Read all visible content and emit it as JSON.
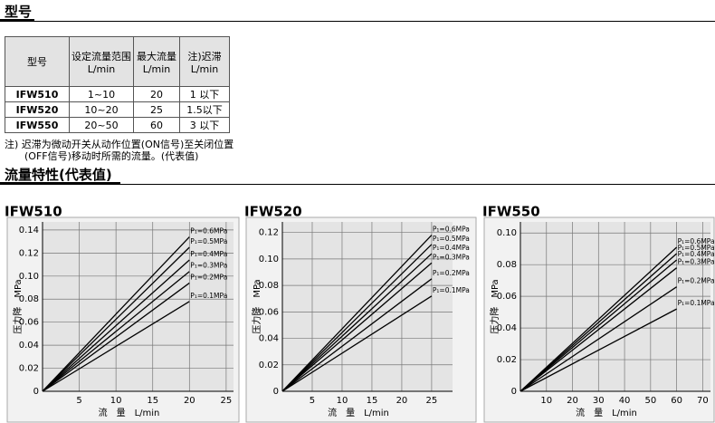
{
  "sections": [
    "型号",
    "流量特性(代表值)"
  ],
  "table": {
    "header": [
      [
        "型号"
      ],
      [
        "设定流量范围",
        "L/min"
      ],
      [
        "最大流量",
        "L/min"
      ],
      [
        "注)迟滞",
        "L/min"
      ]
    ],
    "rows": [
      [
        "IFW510",
        "1~10",
        "20",
        "1 以下"
      ],
      [
        "IFW520",
        "10~20",
        "25",
        "1.5以下"
      ],
      [
        "IFW550",
        "20~50",
        "60",
        "3 以下"
      ]
    ]
  },
  "note": [
    "注) 迟滞为微动开关从动作位置(ON信号)至关闭位置",
    "(OFF信号)移动时所需的流量。(代表值)"
  ],
  "chart_data": [
    {
      "type": "line",
      "title": "IFW510",
      "x_label": "流　量　L/min",
      "y_label": "压力降　MPa",
      "x": [
        0,
        20
      ],
      "xlim": [
        0,
        26
      ],
      "ylim": [
        0,
        0.147
      ],
      "xticks": [
        5,
        10,
        15,
        20,
        25
      ],
      "yticks": [
        0,
        0.02,
        0.04,
        0.06,
        0.08,
        {
          "value": 0.1,
          "label": "0.10"
        },
        0.12,
        0.14
      ],
      "grid": true,
      "series": [
        {
          "name": "P₁=0.6MPa",
          "color": "#000000",
          "values": [
            0,
            0.134
          ]
        },
        {
          "name": "P₁=0.5MPa",
          "color": "#000000",
          "values": [
            0,
            0.125
          ]
        },
        {
          "name": "P₁=0.4MPa",
          "color": "#000000",
          "values": [
            0,
            0.114
          ]
        },
        {
          "name": "P₁=0.3MPa",
          "color": "#000000",
          "values": [
            0,
            0.104
          ]
        },
        {
          "name": "P₁=0.2MPa",
          "color": "#000000",
          "values": [
            0,
            0.094
          ]
        },
        {
          "name": "P₁=0.1MPa",
          "color": "#000000",
          "values": [
            0,
            0.078
          ]
        }
      ]
    },
    {
      "type": "line",
      "title": "IFW520",
      "x_label": "流　量　L/min",
      "y_label": "压力降　MPa",
      "x": [
        0,
        25
      ],
      "xlim": [
        0,
        28.5
      ],
      "ylim": [
        0,
        0.128
      ],
      "xticks": [
        5,
        10,
        15,
        20,
        25
      ],
      "yticks": [
        0,
        0.02,
        0.04,
        0.06,
        0.08,
        {
          "value": 0.1,
          "label": "0.10"
        },
        0.12
      ],
      "grid": true,
      "series": [
        {
          "name": "P₁=0.6MPa",
          "color": "#000000",
          "values": [
            0,
            0.118
          ]
        },
        {
          "name": "P₁=0.5MPa",
          "color": "#000000",
          "values": [
            0,
            0.111
          ]
        },
        {
          "name": "P₁=0.4MPa",
          "color": "#000000",
          "values": [
            0,
            0.104
          ]
        },
        {
          "name": "P₁=0.3MPa",
          "color": "#000000",
          "values": [
            0,
            0.097
          ]
        },
        {
          "name": "P₁=0.2MPa",
          "color": "#000000",
          "values": [
            0,
            0.085
          ]
        },
        {
          "name": "P₁=0.1MPa",
          "color": "#000000",
          "values": [
            0,
            0.072
          ]
        }
      ]
    },
    {
      "type": "line",
      "title": "IFW550",
      "x_label": "流　量　L/min",
      "y_label": "压力降　MPa",
      "x": [
        0,
        60
      ],
      "xlim": [
        0,
        73
      ],
      "ylim": [
        0,
        0.107
      ],
      "xticks": [
        10,
        20,
        30,
        40,
        50,
        60,
        70
      ],
      "yticks": [
        0,
        0.02,
        0.04,
        0.06,
        0.08,
        {
          "value": 0.1,
          "label": "0.10"
        }
      ],
      "grid": true,
      "series": [
        {
          "name": "P₁=0.6MPa",
          "color": "#000000",
          "values": [
            0,
            0.091
          ]
        },
        {
          "name": "P₁=0.5MPa",
          "color": "#000000",
          "values": [
            0,
            0.087
          ]
        },
        {
          "name": "P₁=0.4MPa",
          "color": "#000000",
          "values": [
            0,
            0.083
          ]
        },
        {
          "name": "P₁=0.3MPa",
          "color": "#000000",
          "values": [
            0,
            0.078
          ]
        },
        {
          "name": "P₁=0.2MPa",
          "color": "#000000",
          "values": [
            0,
            0.066
          ]
        },
        {
          "name": "P₁=0.1MPa",
          "color": "#000000",
          "values": [
            0,
            0.052
          ]
        }
      ]
    }
  ]
}
